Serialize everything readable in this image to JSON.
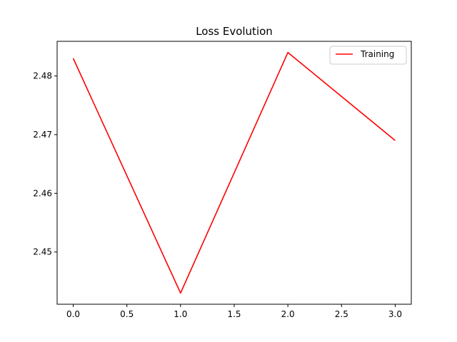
{
  "chart_data": {
    "type": "line",
    "title": "Loss Evolution",
    "xlabel": "",
    "ylabel": "",
    "xlim": [
      -0.15,
      3.15
    ],
    "ylim": [
      2.4411,
      2.4859
    ],
    "x_ticks": [
      0.0,
      0.5,
      1.0,
      1.5,
      2.0,
      2.5,
      3.0
    ],
    "x_tick_labels": [
      "0.0",
      "0.5",
      "1.0",
      "1.5",
      "2.0",
      "2.5",
      "3.0"
    ],
    "y_ticks": [
      2.45,
      2.46,
      2.47,
      2.48
    ],
    "y_tick_labels": [
      "2.45",
      "2.46",
      "2.47",
      "2.48"
    ],
    "grid": false,
    "legend_position": "top-right",
    "series": [
      {
        "name": "Training",
        "color": "#ff0000",
        "x": [
          0,
          1,
          2,
          3
        ],
        "y": [
          2.483,
          2.443,
          2.484,
          2.469
        ]
      }
    ]
  }
}
